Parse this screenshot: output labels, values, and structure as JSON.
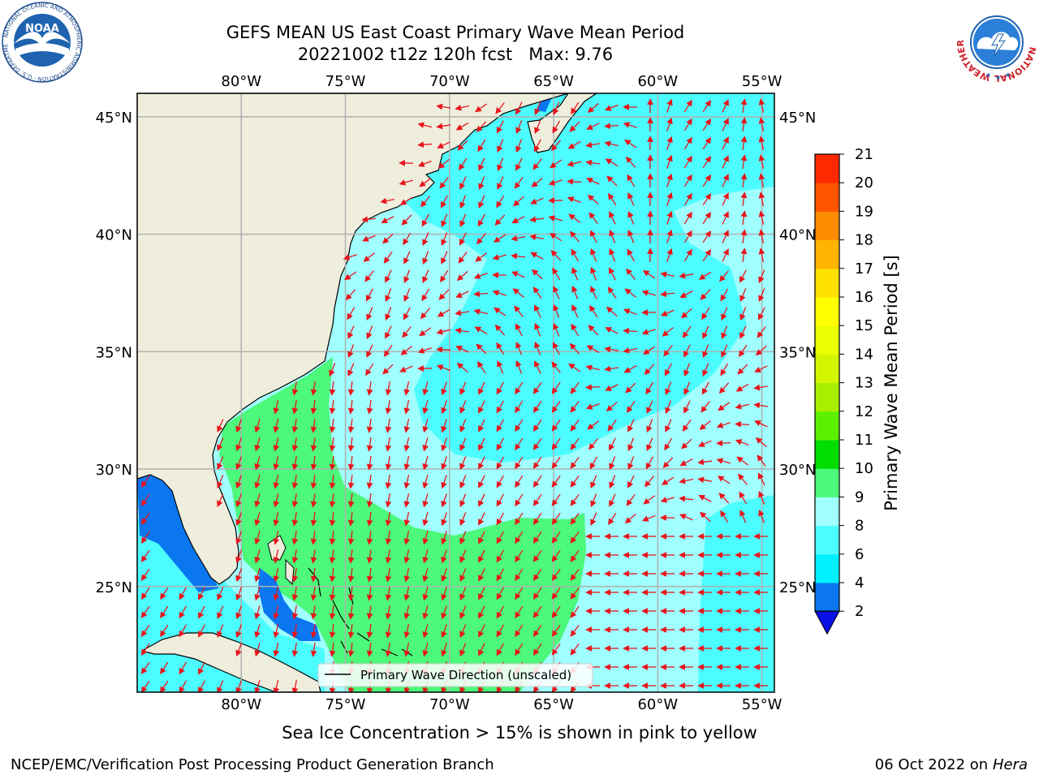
{
  "header": {
    "title_line1": "GEFS MEAN US East Coast Primary Wave Mean Period",
    "title_line2": "20221002 t12z 120h fcst   Max: 9.76"
  },
  "logos": {
    "left": {
      "name": "noaa-logo",
      "text": "NOAA",
      "ring_text": "NATIONAL OCEANIC AND ATMOSPHERIC ADMINISTRATION · U.S. DEPARTMENT OF COMMERCE",
      "color": "#1f63b0"
    },
    "right": {
      "name": "nws-logo",
      "ring_text": "NATIONAL WEATHER SERVICE",
      "color": "#d0202a"
    }
  },
  "map": {
    "lon_range": [
      -85,
      -54.4
    ],
    "lat_range": [
      20.5,
      46
    ],
    "lon_ticks": [
      -80,
      -75,
      -70,
      -65,
      -60,
      -55
    ],
    "lon_tick_labels": [
      "80°W",
      "75°W",
      "70°W",
      "65°W",
      "60°W",
      "55°W"
    ],
    "lat_ticks": [
      25,
      30,
      35,
      40,
      45
    ],
    "lat_tick_labels": [
      "25°N",
      "30°N",
      "35°N",
      "40°N",
      "45°N"
    ],
    "grid": true,
    "land_color": "#efeedd",
    "arrow_color": "#e8141c",
    "legend": {
      "label": "Primary Wave Direction (unscaled)",
      "placement": "lower-center"
    }
  },
  "colorbar": {
    "label": "Primary Wave Mean Period [s]",
    "ticks": [
      "2",
      "4",
      "6",
      "8",
      "9",
      "10",
      "11",
      "12",
      "13",
      "14",
      "15",
      "16",
      "17",
      "18",
      "19",
      "20",
      "21"
    ],
    "colors": [
      "#0a77f0",
      "#00f0ff",
      "#4cfdff",
      "#a0ffff",
      "#4cf97a",
      "#00de00",
      "#5cf000",
      "#a8f000",
      "#d2f500",
      "#eaff00",
      "#ffff00",
      "#ffe100",
      "#ffb500",
      "#ff8c00",
      "#ff5500",
      "#ff2a00"
    ],
    "extend_color": "#0a10e6"
  },
  "footer": {
    "note": "Sea Ice Concentration > 15% is shown in pink to yellow",
    "credit": "NCEP/EMC/Verification Post Processing Product Generation Branch",
    "date": "06 Oct 2022",
    "on_word": "on",
    "host": "Hera"
  }
}
